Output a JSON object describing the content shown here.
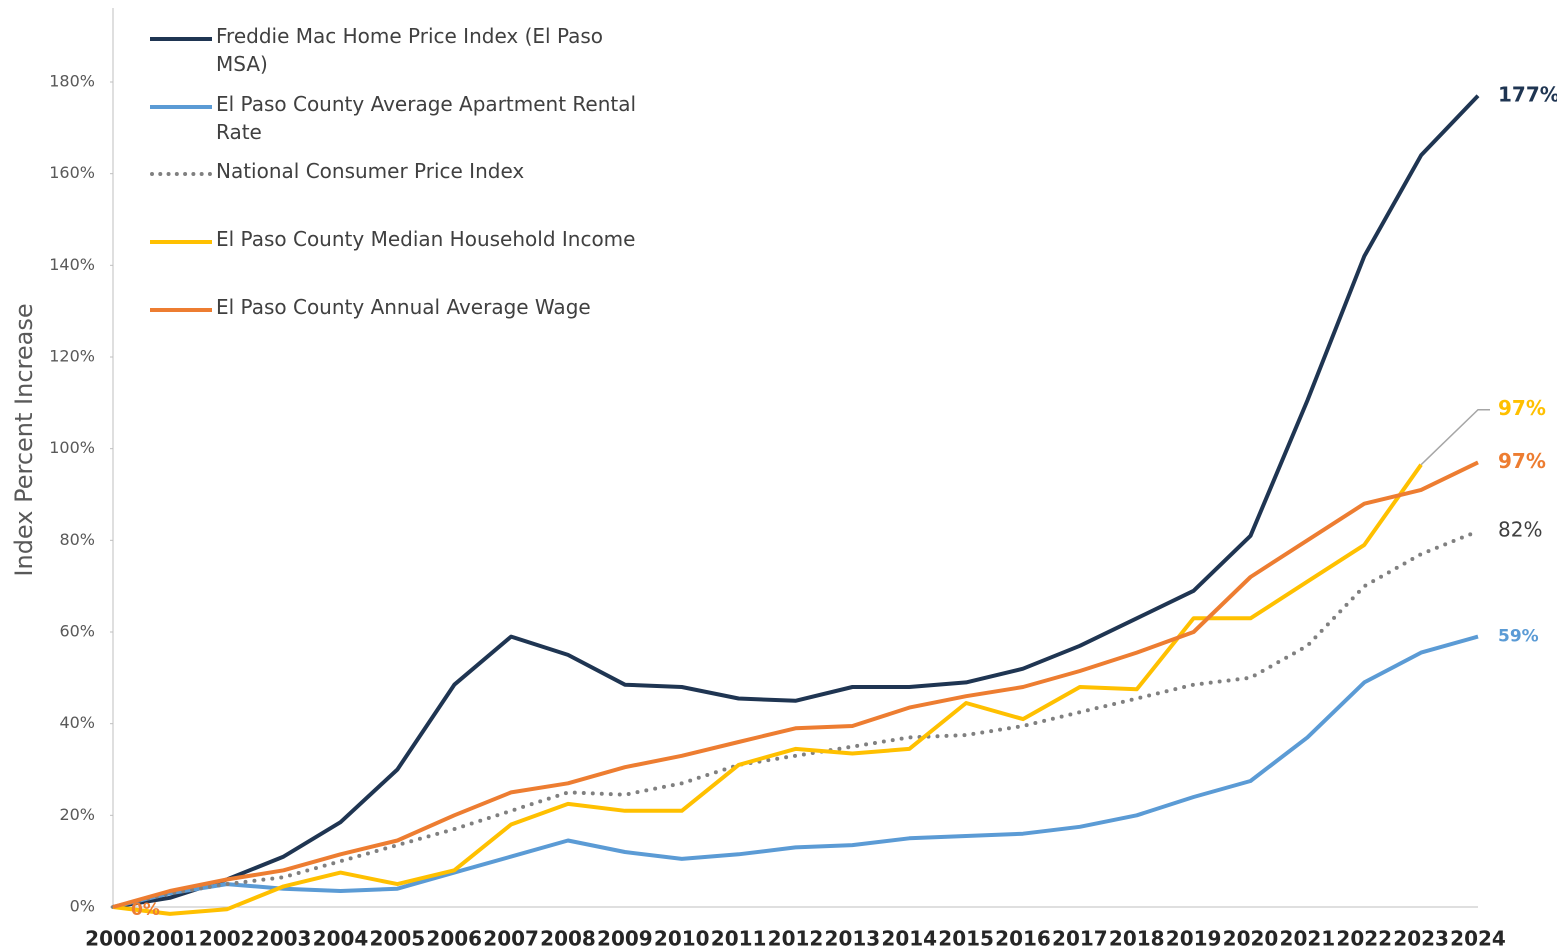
{
  "chart_data": {
    "type": "line",
    "y_axis_label": "Index Percent Increase",
    "categories": [
      "2000",
      "2001",
      "2002",
      "2003",
      "2004",
      "2005",
      "2006",
      "2007",
      "2008",
      "2009",
      "2010",
      "2011",
      "2012",
      "2013",
      "2014",
      "2015",
      "2016",
      "2017",
      "2018",
      "2019",
      "2020",
      "2021",
      "2022",
      "2023",
      "2024"
    ],
    "ylim": [
      0,
      180
    ],
    "yticks": [
      {
        "value": 0,
        "label": "0%"
      },
      {
        "value": 20,
        "label": "20%"
      },
      {
        "value": 40,
        "label": "40%"
      },
      {
        "value": 60,
        "label": "60%"
      },
      {
        "value": 80,
        "label": "80%"
      },
      {
        "value": 100,
        "label": "100%"
      },
      {
        "value": 120,
        "label": "120%"
      },
      {
        "value": 140,
        "label": "140%"
      },
      {
        "value": 160,
        "label": "160%"
      },
      {
        "value": 180,
        "label": "180%"
      }
    ],
    "grid": false,
    "legend": "top-left",
    "series": [
      {
        "name": "Freddie Mac Home Price Index (El Paso MSA)",
        "color": "#1f3552",
        "style": "solid",
        "values": [
          0,
          2,
          6,
          11,
          18.5,
          30,
          48.5,
          59,
          55,
          48.5,
          48,
          45.5,
          45,
          48,
          48,
          49,
          52,
          57,
          63,
          69,
          81,
          110.5,
          142,
          164,
          177
        ],
        "end_label": "177%"
      },
      {
        "name": "El Paso County Average Apartment Rental Rate",
        "color": "#5b9bd5",
        "style": "solid",
        "values": [
          0,
          3,
          5,
          4,
          3.5,
          4,
          7.5,
          11,
          14.5,
          12,
          10.5,
          11.5,
          13,
          13.5,
          15,
          15.5,
          16,
          17.5,
          20,
          24,
          27.5,
          37,
          49,
          55.5,
          59
        ],
        "end_label": "59%"
      },
      {
        "name": "National Consumer Price Index",
        "color": "#808080",
        "style": "dotted",
        "values": [
          0,
          3,
          5,
          6.5,
          10,
          13.5,
          17,
          21,
          25,
          24.5,
          27,
          31,
          33,
          35,
          37,
          37.5,
          39.5,
          42.5,
          45.5,
          48.5,
          50,
          57,
          70,
          77,
          82
        ],
        "end_label": "82%"
      },
      {
        "name": "El Paso County Median Household Income",
        "color": "#ffc000",
        "style": "solid",
        "values": [
          0,
          -1.5,
          -0.5,
          4.5,
          7.5,
          5,
          8,
          18,
          22.5,
          21,
          21,
          31,
          34.5,
          33.5,
          34.5,
          44.5,
          41,
          48,
          47.5,
          63,
          63,
          71,
          79,
          96.5,
          null
        ],
        "end_label": "97%"
      },
      {
        "name": "El Paso County Annual Average Wage",
        "color": "#ed7d31",
        "style": "solid",
        "values": [
          0,
          3.5,
          6,
          8,
          11.5,
          14.5,
          20,
          25,
          27,
          30.5,
          33,
          36,
          39,
          39.5,
          43.5,
          46,
          48,
          51.5,
          55.5,
          60,
          72,
          80,
          88,
          91,
          97
        ],
        "end_label": "97%",
        "start_label": "0%"
      }
    ]
  }
}
